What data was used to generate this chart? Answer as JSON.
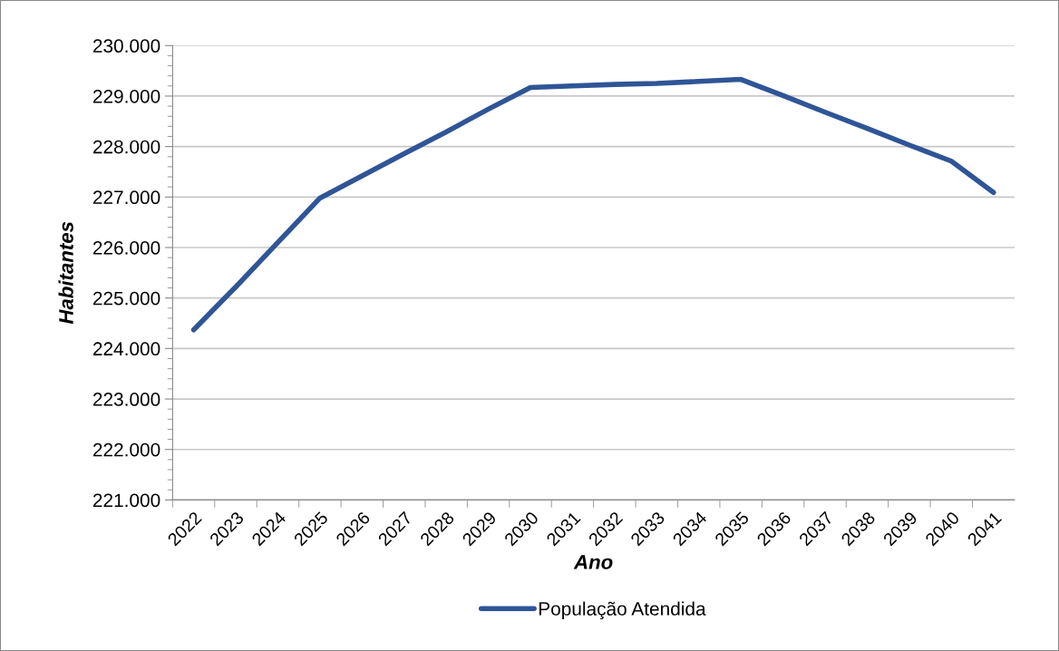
{
  "chart_data": {
    "type": "line",
    "xlabel": "Ano",
    "ylabel": "Habitantes",
    "categories": [
      "2022",
      "2023",
      "2024",
      "2025",
      "2026",
      "2027",
      "2028",
      "2029",
      "2030",
      "2031",
      "2032",
      "2033",
      "2034",
      "2035",
      "2036",
      "2037",
      "2038",
      "2039",
      "2040",
      "2041"
    ],
    "series": [
      {
        "name": "População Atendida",
        "color": "#2f5597",
        "values": [
          224370,
          225220,
          226100,
          226980,
          227420,
          227860,
          228290,
          228740,
          229170,
          229200,
          229230,
          229250,
          229290,
          229330,
          229010,
          228680,
          228360,
          228030,
          227710,
          227090
        ]
      }
    ],
    "ylim": [
      221000,
      230000
    ],
    "yticks": [
      {
        "value": 221000,
        "label": "221.000"
      },
      {
        "value": 222000,
        "label": "222.000"
      },
      {
        "value": 223000,
        "label": "223.000"
      },
      {
        "value": 224000,
        "label": "224.000"
      },
      {
        "value": 225000,
        "label": "225.000"
      },
      {
        "value": 226000,
        "label": "226.000"
      },
      {
        "value": 227000,
        "label": "227.000"
      },
      {
        "value": 228000,
        "label": "228.000"
      },
      {
        "value": 229000,
        "label": "229.000"
      },
      {
        "value": 230000,
        "label": "230.000"
      }
    ],
    "grid": "y",
    "legend": "bottom",
    "marker": "none",
    "line_style": "solid"
  }
}
